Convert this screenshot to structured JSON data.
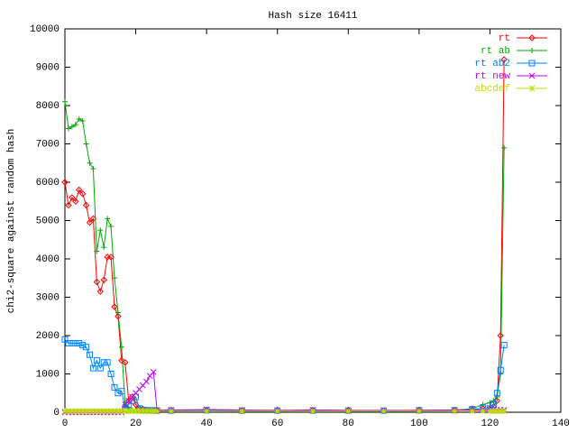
{
  "chart_data": {
    "type": "line",
    "title": "Hash size 16411",
    "y_label": "chi2-square against random hash",
    "x": [
      0,
      1,
      2,
      3,
      4,
      5,
      6,
      7,
      8,
      9,
      10,
      11,
      12,
      13,
      14,
      15,
      16,
      17,
      18,
      19,
      20,
      21,
      22,
      23,
      24,
      25,
      26,
      30,
      40,
      50,
      60,
      70,
      80,
      90,
      100,
      110,
      115,
      118,
      120,
      121,
      122,
      123,
      124
    ],
    "series": [
      {
        "name": "rt",
        "color": "#ff0000",
        "marker": "diamond",
        "values": [
          6000,
          5400,
          5600,
          5500,
          5800,
          5700,
          5400,
          4950,
          5050,
          3400,
          3150,
          3450,
          4050,
          4050,
          2750,
          2500,
          1350,
          1300,
          300,
          400,
          200,
          100,
          80,
          60,
          50,
          50,
          50,
          60,
          50,
          50,
          40,
          60,
          50,
          40,
          50,
          60,
          80,
          100,
          100,
          150,
          300,
          2000,
          9200
        ]
      },
      {
        "name": "rt ab",
        "color": "#00aa00",
        "marker": "plus",
        "values": [
          8100,
          7400,
          7450,
          7500,
          7650,
          7600,
          7000,
          6500,
          6350,
          4200,
          4750,
          4300,
          5050,
          4850,
          3500,
          2600,
          1700,
          200,
          100,
          50,
          40,
          30,
          30,
          30,
          30,
          30,
          30,
          30,
          40,
          30,
          30,
          40,
          30,
          30,
          30,
          40,
          100,
          200,
          250,
          300,
          400,
          1000,
          6900
        ]
      },
      {
        "name": "rt ab2",
        "color": "#0080ff",
        "marker": "square",
        "values": [
          1900,
          1800,
          1800,
          1800,
          1800,
          1750,
          1700,
          1500,
          1150,
          1350,
          1150,
          1300,
          1300,
          1000,
          650,
          500,
          550,
          100,
          200,
          300,
          400,
          100,
          60,
          50,
          50,
          50,
          40,
          40,
          50,
          40,
          40,
          40,
          40,
          40,
          50,
          50,
          80,
          100,
          100,
          200,
          500,
          1100,
          1750
        ]
      },
      {
        "name": "rt new",
        "color": "#c000ff",
        "marker": "cross",
        "values": [
          0,
          0,
          0,
          0,
          0,
          0,
          0,
          0,
          0,
          0,
          0,
          0,
          0,
          0,
          0,
          0,
          0,
          200,
          300,
          400,
          500,
          600,
          700,
          800,
          950,
          1050,
          50,
          60,
          70,
          60,
          50,
          60,
          50,
          50,
          50,
          60,
          60,
          60,
          60,
          60,
          60,
          60,
          60
        ]
      },
      {
        "name": "abcdef",
        "color": "#c0e000",
        "marker": "star",
        "values": [
          30,
          30,
          30,
          30,
          30,
          30,
          30,
          30,
          30,
          30,
          30,
          30,
          30,
          30,
          30,
          30,
          30,
          30,
          30,
          30,
          30,
          30,
          30,
          30,
          30,
          30,
          30,
          30,
          30,
          30,
          30,
          30,
          30,
          30,
          30,
          30,
          30,
          30,
          30,
          30,
          30,
          30,
          30
        ]
      }
    ],
    "xlim": [
      0,
      140
    ],
    "xticks": [
      0,
      20,
      40,
      60,
      80,
      100,
      120,
      140
    ],
    "ylim": [
      0,
      10000
    ],
    "yticks": [
      0,
      1000,
      2000,
      3000,
      4000,
      5000,
      6000,
      7000,
      8000,
      9000,
      10000
    ],
    "legend": "top-right"
  }
}
